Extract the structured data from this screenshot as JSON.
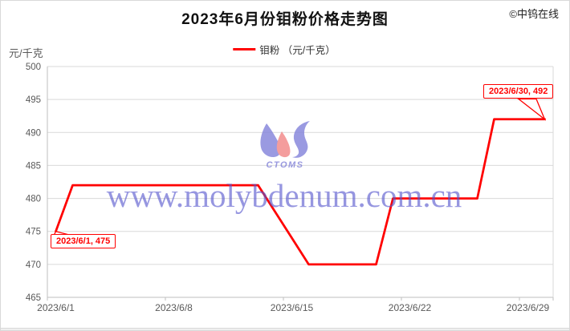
{
  "header": {
    "copyright": "©中钨在线"
  },
  "watermark": {
    "text": "www.molybdenum.com.cn",
    "logo_text": "CTOMS"
  },
  "colors": {
    "line": "#ff0000",
    "grid": "#d9d9d9",
    "axis": "#bfbfbf",
    "tick_text": "#595959",
    "watermark_blue": "#5555cd",
    "logo_blue": "#8282da",
    "logo_red": "#f28585",
    "annotation_red": "#ff0000"
  },
  "chart_data": {
    "type": "line",
    "title": "2023年6月份钼粉价格走势图",
    "ylabel": "元/千克",
    "xlabel": "",
    "ylim": [
      465,
      500
    ],
    "y_ticks": [
      500,
      495,
      490,
      485,
      480,
      475,
      470,
      465
    ],
    "x": [
      "2023/6/1",
      "2023/6/2",
      "2023/6/3",
      "2023/6/4",
      "2023/6/5",
      "2023/6/6",
      "2023/6/7",
      "2023/6/8",
      "2023/6/9",
      "2023/6/10",
      "2023/6/11",
      "2023/6/12",
      "2023/6/13",
      "2023/6/14",
      "2023/6/15",
      "2023/6/16",
      "2023/6/17",
      "2023/6/18",
      "2023/6/19",
      "2023/6/20",
      "2023/6/21",
      "2023/6/22",
      "2023/6/23",
      "2023/6/24",
      "2023/6/25",
      "2023/6/26",
      "2023/6/27",
      "2023/6/28",
      "2023/6/29",
      "2023/6/30"
    ],
    "x_tick_labels": [
      "2023/6/1",
      "2023/6/8",
      "2023/6/15",
      "2023/6/22",
      "2023/6/29"
    ],
    "x_tick_every": 7,
    "grid": "horizontal",
    "legend_position": "top",
    "series": [
      {
        "name": "钼粉 （元/千克）",
        "color": "#ff0000",
        "values": [
          475,
          482,
          482,
          482,
          482,
          482,
          482,
          482,
          482,
          482,
          482,
          482,
          482,
          478,
          474,
          470,
          470,
          470,
          470,
          470,
          480,
          480,
          480,
          480,
          480,
          480,
          492,
          492,
          492,
          492
        ]
      }
    ],
    "annotations": [
      {
        "text": "2023/6/1, 475",
        "index": 0,
        "value": 475
      },
      {
        "text": "2023/6/30, 492",
        "index": 29,
        "value": 492
      }
    ]
  }
}
